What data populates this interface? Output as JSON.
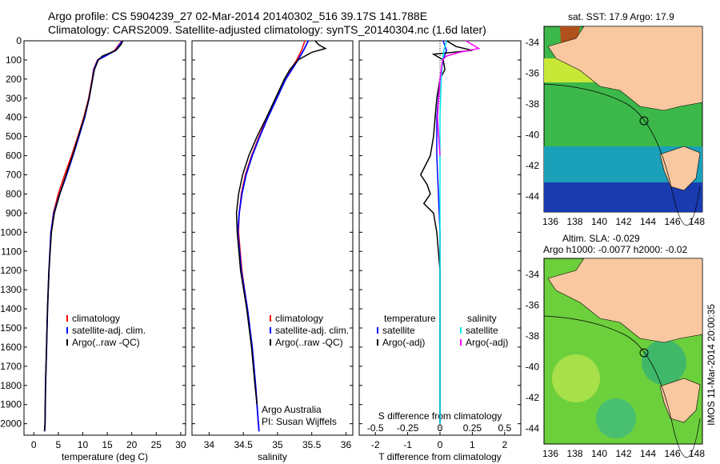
{
  "header": {
    "title_line1": "Argo profile: CS 5904239_27 02-Mar-2014 20140302_516 39.17S 141.788E",
    "title_line2": "Climatology: CARS2009. Satellite-adjusted climatology: synTS_20140304.nc (1.6d later)"
  },
  "colors": {
    "climatology": "#ff0000",
    "satellite": "#0000ff",
    "argo": "#000000",
    "sat_salinity": "#00e5ee",
    "argo_salinity": "#ff00ff",
    "land": "#f9c8a0"
  },
  "depth_ticks": [
    0,
    100,
    200,
    300,
    400,
    500,
    600,
    700,
    800,
    900,
    1000,
    1100,
    1200,
    1300,
    1400,
    1500,
    1600,
    1700,
    1800,
    1900,
    2000
  ],
  "chart_data": [
    {
      "type": "line",
      "xlabel": "temperature (deg C)",
      "xlim": [
        -2,
        31
      ],
      "ylim": [
        2060,
        0
      ],
      "xticks": [
        0,
        5,
        10,
        15,
        20,
        25,
        30
      ],
      "legend": [
        "climatology",
        "satellite-adj. clim.",
        "Argo(..raw -QC)"
      ],
      "series": [
        {
          "name": "climatology",
          "depth": [
            0,
            50,
            100,
            150,
            200,
            300,
            400,
            500,
            600,
            700,
            800,
            900,
            1000,
            1200,
            1400,
            1600,
            1800,
            2000,
            2040
          ],
          "values": [
            18.0,
            16.5,
            13.0,
            12.2,
            11.9,
            11.2,
            10.2,
            9.0,
            7.7,
            6.3,
            5.0,
            4.0,
            3.5,
            3.1,
            2.8,
            2.6,
            2.4,
            2.3,
            2.2
          ]
        },
        {
          "name": "satellite-adj. clim.",
          "depth": [
            0,
            50,
            100,
            150,
            200,
            300,
            400,
            500,
            600,
            700,
            800,
            900,
            1000,
            1200,
            1400,
            1600,
            1800,
            2000,
            2040
          ],
          "values": [
            18.1,
            16.7,
            13.1,
            12.3,
            12.0,
            11.3,
            10.4,
            9.2,
            8.0,
            6.7,
            5.3,
            4.1,
            3.5,
            3.1,
            2.8,
            2.6,
            2.4,
            2.3,
            2.2
          ]
        },
        {
          "name": "Argo(..raw -QC)",
          "depth": [
            0,
            20,
            50,
            80,
            100,
            150,
            200,
            300,
            400,
            500,
            600,
            700,
            800,
            900,
            1000,
            1200,
            1400,
            1600,
            1800,
            2000,
            2040
          ],
          "values": [
            18.2,
            17.8,
            16.8,
            14.0,
            13.2,
            12.4,
            12.0,
            11.3,
            10.3,
            9.1,
            7.9,
            6.6,
            5.3,
            4.2,
            3.6,
            3.1,
            2.8,
            2.6,
            2.4,
            2.3,
            2.2
          ]
        }
      ]
    },
    {
      "type": "line",
      "xlabel": "salinity",
      "xlim": [
        33.75,
        36.1
      ],
      "ylim": [
        2060,
        0
      ],
      "xticks": [
        34,
        34.5,
        35,
        35.5,
        36
      ],
      "legend": [
        "climatology",
        "satellite-adj. clim.",
        "Argo(..raw -QC)"
      ],
      "annotation": [
        "Argo Australia",
        "PI: Susan Wijffels"
      ],
      "series": [
        {
          "name": "climatology",
          "depth": [
            0,
            50,
            100,
            200,
            300,
            400,
            500,
            600,
            700,
            800,
            900,
            1000,
            1200,
            1400,
            1600,
            1800,
            2000,
            2040
          ],
          "values": [
            35.4,
            35.35,
            35.28,
            35.1,
            34.98,
            34.85,
            34.73,
            34.62,
            34.53,
            34.47,
            34.44,
            34.43,
            34.48,
            34.56,
            34.63,
            34.68,
            34.72,
            34.73
          ]
        },
        {
          "name": "satellite-adj. clim.",
          "depth": [
            0,
            50,
            100,
            200,
            300,
            400,
            500,
            600,
            700,
            800,
            900,
            1000,
            1200,
            1400,
            1600,
            1800,
            2000,
            2040
          ],
          "values": [
            35.45,
            35.38,
            35.3,
            35.12,
            34.99,
            34.86,
            34.74,
            34.63,
            34.54,
            34.48,
            34.44,
            34.42,
            34.47,
            34.56,
            34.63,
            34.68,
            34.72,
            34.73
          ]
        },
        {
          "name": "Argo(..raw -QC)",
          "depth": [
            0,
            20,
            40,
            60,
            100,
            150,
            200,
            300,
            400,
            500,
            600,
            700,
            800,
            900,
            1000,
            1200,
            1400,
            1600,
            1800,
            1900
          ],
          "values": [
            35.55,
            35.6,
            35.7,
            35.5,
            35.3,
            35.18,
            35.1,
            34.97,
            34.84,
            34.7,
            34.58,
            34.49,
            34.43,
            34.4,
            34.41,
            34.46,
            34.55,
            34.62,
            34.67,
            34.7
          ]
        }
      ]
    },
    {
      "type": "line",
      "xlabel": "T difference from climatology",
      "top_label": "S difference from climatology",
      "xlim": [
        -2.5,
        2.5
      ],
      "ylim": [
        2060,
        0
      ],
      "xticks": [
        "-2",
        "-1",
        "0",
        "1",
        "2"
      ],
      "xticks_top": [
        "-0.5",
        "-0.25",
        "0",
        "0.25",
        "0.5"
      ],
      "legend_temperature": [
        "temperature",
        "satellite",
        "Argo(-adj)"
      ],
      "legend_salinity": [
        "salinity",
        "satellite",
        "Argo(-adj)"
      ],
      "series": [
        {
          "name": "temperature satellite",
          "depth": [
            0,
            50,
            100,
            200,
            400,
            600,
            800,
            1000,
            1400,
            2000
          ],
          "values": [
            0.1,
            0.2,
            0.1,
            0.0,
            -0.1,
            -0.1,
            -0.05,
            0.0,
            0.0,
            0.0
          ]
        },
        {
          "name": "temperature Argo(-adj)",
          "depth": [
            0,
            30,
            50,
            70,
            100,
            150,
            200,
            300,
            400,
            500,
            600,
            700,
            750,
            800,
            850,
            900,
            1000,
            1200,
            1400,
            1600,
            1800,
            2000
          ],
          "values": [
            0.2,
            0.5,
            1.0,
            -0.2,
            0.1,
            0.15,
            0.0,
            -0.1,
            -0.15,
            -0.2,
            -0.3,
            -0.6,
            -0.4,
            -0.3,
            -0.5,
            -0.2,
            -0.1,
            0.0,
            0.0,
            0.0,
            0.0,
            0.0
          ]
        },
        {
          "name": "salinity satellite",
          "depth": [
            0,
            50,
            100,
            200,
            400,
            600,
            800,
            1000,
            1400,
            2000
          ],
          "values": [
            0.05,
            0.03,
            0.02,
            0.01,
            0.0,
            0.0,
            0.0,
            0.0,
            0.0,
            0.0
          ]
        },
        {
          "name": "salinity Argo(-adj)",
          "depth": [
            0,
            20,
            40,
            60,
            80,
            100,
            200,
            300,
            400,
            500,
            600
          ],
          "values": [
            0.2,
            0.25,
            0.3,
            0.15,
            0.05,
            0.02,
            0.0,
            -0.01,
            -0.02,
            -0.01,
            0.0
          ]
        }
      ]
    }
  ],
  "maps": {
    "sst_caption": "sat. SST: 17.9 Argo: 17.9",
    "sla_caption1": "Altim. SLA: -0.029",
    "sla_caption2": "Argo h1000: -0.0077 h2000: -0.02",
    "xticks": [
      "136",
      "138",
      "140",
      "142",
      "144",
      "146",
      "148"
    ],
    "yticks": [
      "-34",
      "-36",
      "-38",
      "-40",
      "-42",
      "-44"
    ]
  },
  "stamp": "IMOS 11-Mar-2014 20:00:35"
}
